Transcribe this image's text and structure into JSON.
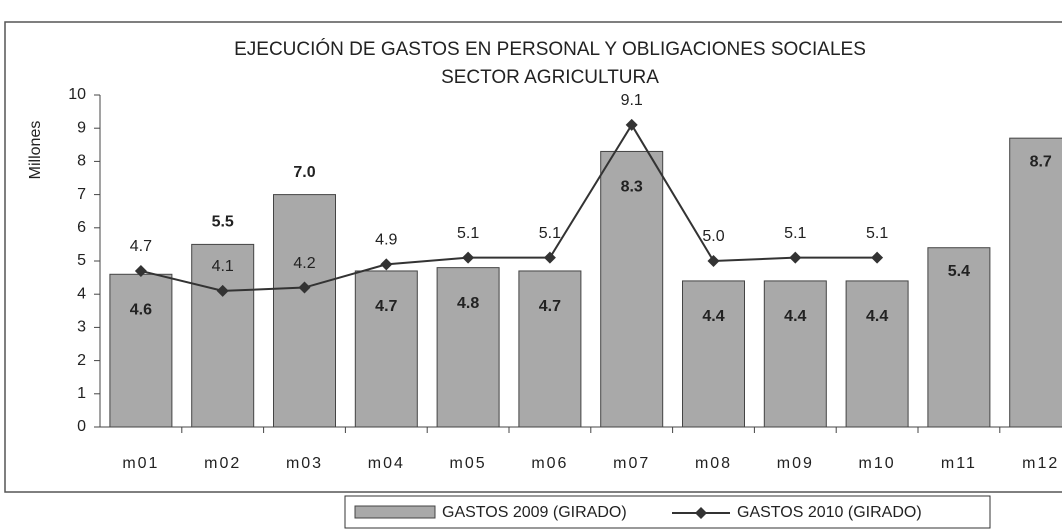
{
  "chart_data": {
    "type": "bar",
    "title": "EJECUCIÓN DE GASTOS EN PERSONAL Y OBLIGACIONES SOCIALES",
    "subtitle": "SECTOR AGRICULTURA",
    "y_label": "Millones",
    "categories": [
      "m01",
      "m02",
      "m03",
      "m04",
      "m05",
      "m06",
      "m07",
      "m08",
      "m09",
      "m10",
      "m11",
      "m12"
    ],
    "series": [
      {
        "name": "GASTOS 2009 (GIRADO)",
        "type": "bar",
        "color": "#a9a9a9",
        "values": [
          4.6,
          5.5,
          7.0,
          4.7,
          4.8,
          4.7,
          8.3,
          4.4,
          4.4,
          4.4,
          5.4,
          8.7
        ],
        "value_labels": [
          "4.6",
          "5.5",
          "7.0",
          "4.7",
          "4.8",
          "4.7",
          "8.3",
          "4.4",
          "4.4",
          "4.4",
          "5.4",
          "8.7"
        ]
      },
      {
        "name": "GASTOS 2010 (GIRADO)",
        "type": "line",
        "color": "#333333",
        "values": [
          4.7,
          4.1,
          4.2,
          4.9,
          5.1,
          5.1,
          9.1,
          5.0,
          5.1,
          5.1,
          null,
          null
        ],
        "value_labels": [
          "4.7",
          "4.1",
          "4.2",
          "4.9",
          "5.1",
          "5.1",
          "9.1",
          "5.0",
          "5.1",
          "5.1",
          null,
          null
        ]
      }
    ],
    "ylim": [
      0,
      10
    ],
    "yticks": [
      0,
      1,
      2,
      3,
      4,
      5,
      6,
      7,
      8,
      9,
      10
    ]
  }
}
